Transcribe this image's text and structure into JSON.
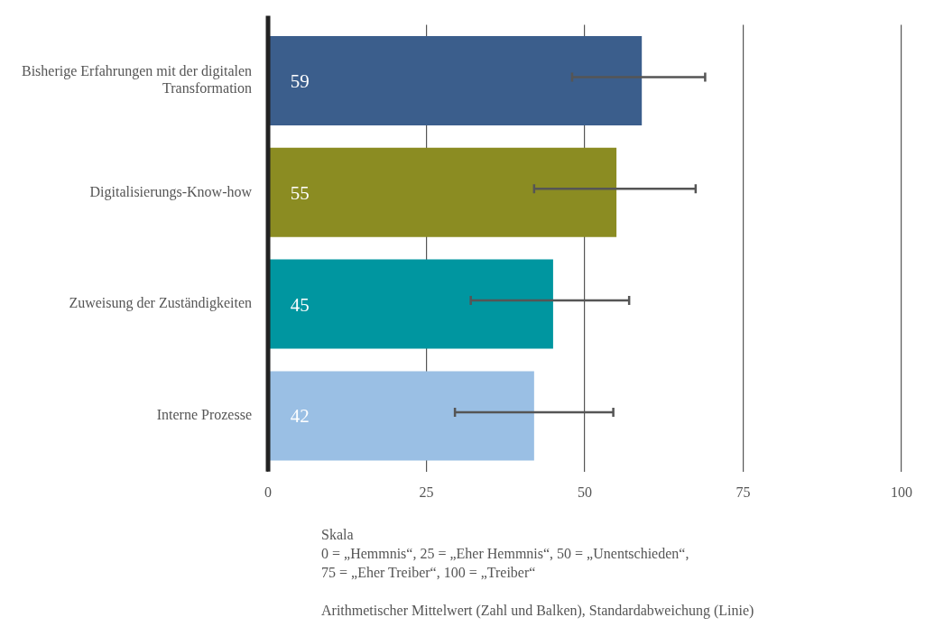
{
  "chart_data": {
    "type": "bar",
    "orientation": "horizontal",
    "categories": [
      "Bisherige Erfahrungen mit der digitalen Transformation",
      "Digitalisierungs-Know-how",
      "Zuweisung der Zuständigkeiten",
      "Interne Prozesse"
    ],
    "values": [
      59,
      55,
      45,
      42
    ],
    "colors": [
      "#3b5e8c",
      "#8b8c22",
      "#0096a0",
      "#9abfe4"
    ],
    "errors": [
      [
        48,
        69
      ],
      [
        42,
        67.5
      ],
      [
        32,
        57
      ],
      [
        29.5,
        54.5
      ]
    ],
    "xlim": [
      0,
      100
    ],
    "xticks": [
      0,
      25,
      50,
      75,
      100
    ],
    "grid": "x",
    "legend": false,
    "data_labels": true,
    "annotations": [
      "Skala",
      "0 = „Hemmnis“, 25 = „Eher Hemmnis“, 50 = „Unentschieden“,",
      "75 = „Eher Treiber“, 100 = „Treiber“",
      "Arithmetischer Mittelwert (Zahl und Balken), Standardabweichung (Linie)"
    ]
  }
}
